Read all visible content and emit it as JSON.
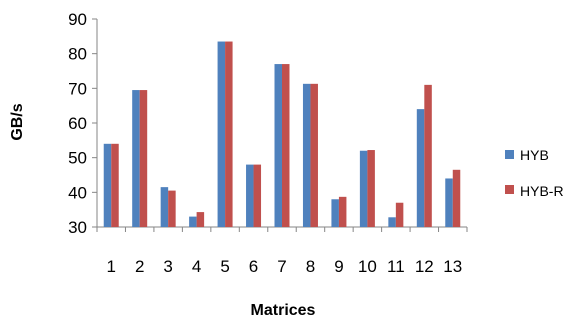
{
  "chart_data": {
    "type": "bar",
    "title": "",
    "xlabel": "Matrices",
    "ylabel": "GB/s",
    "categories": [
      "1",
      "2",
      "3",
      "4",
      "5",
      "6",
      "7",
      "8",
      "9",
      "10",
      "11",
      "12",
      "13"
    ],
    "series": [
      {
        "name": "HYB",
        "color": "#4F81BD",
        "values": [
          54,
          69.5,
          41.5,
          33,
          83.5,
          48,
          77,
          71.3,
          38,
          52,
          32.8,
          64,
          44
        ]
      },
      {
        "name": "HYB-R",
        "color": "#C0504D",
        "values": [
          54,
          69.5,
          40.5,
          34.3,
          83.5,
          48,
          77,
          71.3,
          38.7,
          52.2,
          37,
          71,
          46.5
        ]
      }
    ],
    "ylim": [
      30,
      90
    ],
    "yticks": [
      30,
      40,
      50,
      60,
      70,
      80,
      90
    ],
    "grid": false,
    "legend_position": "right"
  }
}
